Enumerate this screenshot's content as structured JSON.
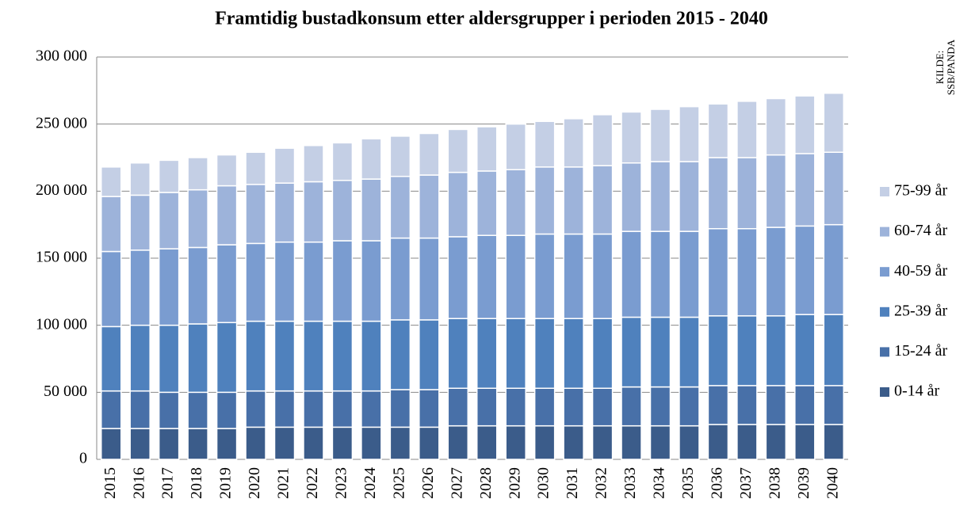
{
  "chart_data": {
    "type": "stacked_bar",
    "title": "Framtidig bustadkonsum etter aldersgrupper i perioden 2015 - 2040",
    "source": [
      "KILDE:",
      "SSB/PANDA"
    ],
    "categories": [
      "2015",
      "2016",
      "2017",
      "2018",
      "2019",
      "2020",
      "2021",
      "2022",
      "2023",
      "2024",
      "2025",
      "2026",
      "2027",
      "2028",
      "2029",
      "2030",
      "2031",
      "2032",
      "2033",
      "2034",
      "2035",
      "2036",
      "2037",
      "2038",
      "2039",
      "2040"
    ],
    "series": [
      {
        "name": "0-14 år",
        "color": "#3b5c8a",
        "values": [
          23000,
          23000,
          23000,
          23000,
          23000,
          24000,
          24000,
          24000,
          24000,
          24000,
          24000,
          24000,
          25000,
          25000,
          25000,
          25000,
          25000,
          25000,
          25000,
          25000,
          25000,
          26000,
          26000,
          26000,
          26000,
          26000
        ]
      },
      {
        "name": "15-24 år",
        "color": "#4870a8",
        "values": [
          28000,
          28000,
          27000,
          27000,
          27000,
          27000,
          27000,
          27000,
          27000,
          27000,
          28000,
          28000,
          28000,
          28000,
          28000,
          28000,
          28000,
          28000,
          29000,
          29000,
          29000,
          29000,
          29000,
          29000,
          29000,
          29000
        ]
      },
      {
        "name": "25-39 år",
        "color": "#4f81bd",
        "values": [
          48000,
          49000,
          50000,
          51000,
          52000,
          52000,
          52000,
          52000,
          52000,
          52000,
          52000,
          52000,
          52000,
          52000,
          52000,
          52000,
          52000,
          52000,
          52000,
          52000,
          52000,
          52000,
          52000,
          52000,
          53000,
          53000
        ]
      },
      {
        "name": "40-59 år",
        "color": "#7a9cd0",
        "values": [
          56000,
          56000,
          57000,
          57000,
          58000,
          58000,
          59000,
          59000,
          60000,
          60000,
          61000,
          61000,
          61000,
          62000,
          62000,
          63000,
          63000,
          63000,
          64000,
          64000,
          64000,
          65000,
          65000,
          66000,
          66000,
          67000
        ]
      },
      {
        "name": "60-74 år",
        "color": "#9db3da",
        "values": [
          41000,
          41000,
          42000,
          43000,
          44000,
          44000,
          44000,
          45000,
          45000,
          46000,
          46000,
          47000,
          48000,
          48000,
          49000,
          50000,
          50000,
          51000,
          51000,
          52000,
          52000,
          53000,
          53000,
          54000,
          54000,
          54000
        ]
      },
      {
        "name": "75-99 år",
        "color": "#c4cfe5",
        "values": [
          22000,
          24000,
          24000,
          24000,
          23000,
          24000,
          26000,
          27000,
          28000,
          30000,
          30000,
          31000,
          32000,
          33000,
          34000,
          34000,
          36000,
          38000,
          38000,
          39000,
          41000,
          40000,
          42000,
          42000,
          43000,
          44000
        ]
      }
    ],
    "ylim": [
      0,
      300000
    ],
    "yticks": [
      {
        "value": 0,
        "label": "0"
      },
      {
        "value": 50000,
        "label": "50 000"
      },
      {
        "value": 100000,
        "label": "100 000"
      },
      {
        "value": 150000,
        "label": "150 000"
      },
      {
        "value": 200000,
        "label": "200 000"
      },
      {
        "value": 250000,
        "label": "250 000"
      },
      {
        "value": 300000,
        "label": "300 000"
      }
    ],
    "grid": true
  }
}
